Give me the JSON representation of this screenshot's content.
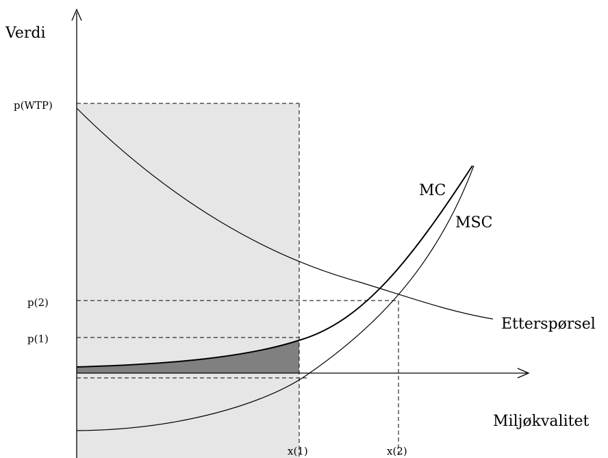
{
  "axes": {
    "y_label": "Verdi",
    "x_label": "Miljøkvalitet"
  },
  "y_ticks": {
    "p_wtp": "p(WTP)",
    "p2": "p(2)",
    "p1": "p(1)"
  },
  "x_ticks": {
    "x1": "x(1)",
    "x2": "x(2)"
  },
  "curves": {
    "mc": "MC",
    "msc": "MSC",
    "demand": "Etterspørsel"
  },
  "colors": {
    "light_area": "#e6e6e6",
    "dark_area": "#808080",
    "line": "#000000"
  }
}
